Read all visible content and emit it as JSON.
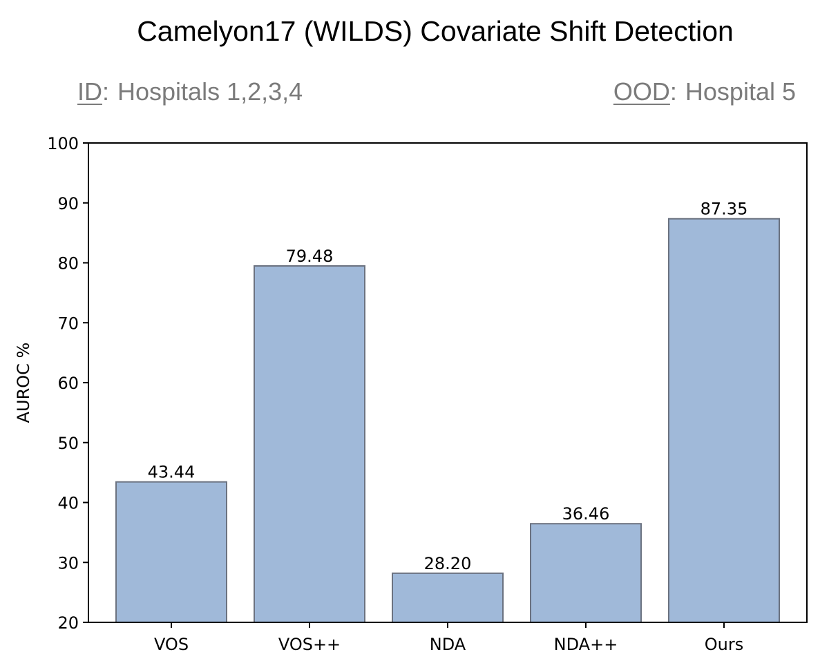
{
  "header": {
    "title": "Camelyon17 (WILDS) Covariate Shift Detection",
    "id_key": "ID",
    "id_sep": ":",
    "id_value": "Hospitals 1,2,3,4",
    "ood_key": "OOD",
    "ood_sep": ":",
    "ood_value": "Hospital 5"
  },
  "chart_data": {
    "type": "bar",
    "title": "Camelyon17 (WILDS) Covariate Shift Detection",
    "xlabel": "",
    "ylabel": "AUROC %",
    "categories": [
      "VOS",
      "VOS++",
      "NDA",
      "NDA++",
      "Ours"
    ],
    "values": [
      43.44,
      79.48,
      28.2,
      36.46,
      87.35
    ],
    "value_labels": [
      "43.44",
      "79.48",
      "28.20",
      "36.46",
      "87.35"
    ],
    "ylim": [
      20,
      100
    ],
    "yticks": [
      20,
      30,
      40,
      50,
      60,
      70,
      80,
      90,
      100
    ],
    "grid": false,
    "colors": {
      "bar_fill": "#a0b9d9",
      "bar_edge": "#6b7280",
      "axis": "#000000"
    }
  }
}
